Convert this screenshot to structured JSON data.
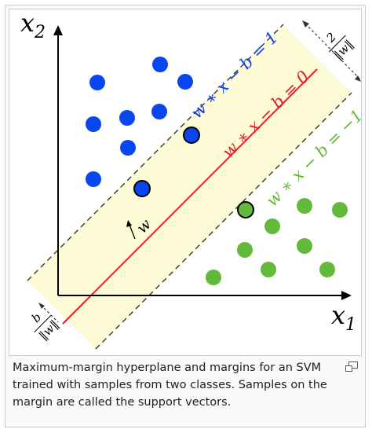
{
  "figure": {
    "axis_x_label": "x",
    "axis_x_sub": "1",
    "axis_y_label": "x",
    "axis_y_sub": "2",
    "hyperplane_label": "w ∗ x − b = 0",
    "upper_margin_label": "w ∗ x − b = 1",
    "lower_margin_label": "w ∗ x − b = −1",
    "normal_vector_label": "w",
    "margin_width_num": "2",
    "margin_width_den": "‖w‖",
    "offset_num": "b",
    "offset_den": "‖w‖",
    "colors": {
      "class_blue": "#0a46f0",
      "class_green": "#63b93a",
      "hyperplane": "#e0202a",
      "margin_band": "#fdfbd5",
      "axis": "#000000",
      "upper_label": "#1040e8",
      "lower_label": "#63b93a"
    }
  },
  "caption": {
    "text": "Maximum-margin hyperplane and margins for an SVM trained with samples from two classes. Samples on the margin are called the support vectors."
  },
  "icons": {
    "magnify": "magnify-icon"
  }
}
